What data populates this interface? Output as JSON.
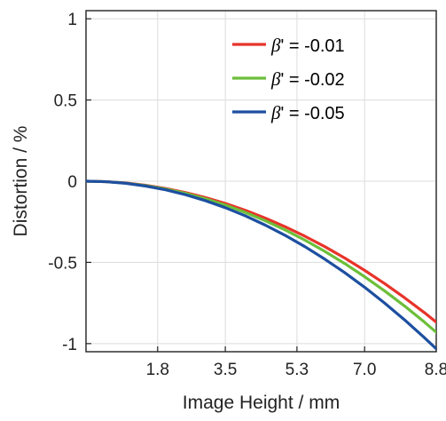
{
  "chart_data": {
    "type": "line",
    "xlabel": "Image Height / mm",
    "ylabel": "Distortion / %",
    "xlim": [
      0,
      8.8
    ],
    "ylim": [
      -1.05,
      1.05
    ],
    "xticks": [
      1.8,
      3.5,
      5.3,
      7.0,
      8.8
    ],
    "xtick_labels": [
      "1.8",
      "3.5",
      "5.3",
      "7.0",
      "8.8"
    ],
    "yticks": [
      -1,
      -0.5,
      0,
      0.5,
      1
    ],
    "ytick_labels": [
      "-1",
      "-0.5",
      "0",
      "0.5",
      "1"
    ],
    "grid": true,
    "legend_position": "top-right",
    "legend_symbol": "β",
    "series": [
      {
        "name": "' = -0.01",
        "color": "#e8332a",
        "x": [
          0,
          0.5,
          1.0,
          1.5,
          2.0,
          2.5,
          3.0,
          3.5,
          4.0,
          4.5,
          5.0,
          5.5,
          6.0,
          6.5,
          7.0,
          7.5,
          8.0,
          8.5,
          8.8
        ],
        "y": [
          0,
          -0.003,
          -0.011,
          -0.025,
          -0.045,
          -0.07,
          -0.101,
          -0.137,
          -0.179,
          -0.227,
          -0.28,
          -0.339,
          -0.403,
          -0.473,
          -0.549,
          -0.63,
          -0.717,
          -0.809,
          -0.868
        ]
      },
      {
        "name": "' = -0.02",
        "color": "#6cbf3a",
        "x": [
          0,
          0.5,
          1.0,
          1.5,
          2.0,
          2.5,
          3.0,
          3.5,
          4.0,
          4.5,
          5.0,
          5.5,
          6.0,
          6.5,
          7.0,
          7.5,
          8.0,
          8.5,
          8.8
        ],
        "y": [
          0,
          -0.003,
          -0.012,
          -0.027,
          -0.048,
          -0.075,
          -0.108,
          -0.147,
          -0.192,
          -0.243,
          -0.3,
          -0.363,
          -0.432,
          -0.507,
          -0.588,
          -0.675,
          -0.768,
          -0.867,
          -0.93
        ]
      },
      {
        "name": "' = -0.05",
        "color": "#1d4fa0",
        "x": [
          0,
          0.5,
          1.0,
          1.5,
          2.0,
          2.5,
          3.0,
          3.5,
          4.0,
          4.5,
          5.0,
          5.5,
          6.0,
          6.5,
          7.0,
          7.5,
          8.0,
          8.5,
          8.8
        ],
        "y": [
          0,
          -0.003,
          -0.013,
          -0.03,
          -0.053,
          -0.083,
          -0.12,
          -0.163,
          -0.213,
          -0.27,
          -0.333,
          -0.403,
          -0.48,
          -0.563,
          -0.653,
          -0.75,
          -0.853,
          -0.963,
          -1.032
        ]
      }
    ]
  }
}
